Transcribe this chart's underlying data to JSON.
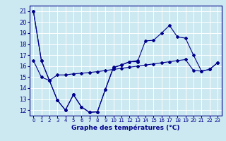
{
  "title": "Graphe des températures (°C)",
  "bg_color": "#cce8f0",
  "line_color": "#00008b",
  "grid_color": "#ffffff",
  "xlim": [
    -0.5,
    23.5
  ],
  "ylim": [
    11.5,
    21.5
  ],
  "xticks": [
    0,
    1,
    2,
    3,
    4,
    5,
    6,
    7,
    8,
    9,
    10,
    11,
    12,
    13,
    14,
    15,
    16,
    17,
    18,
    19,
    20,
    21,
    22,
    23
  ],
  "yticks": [
    12,
    13,
    14,
    15,
    16,
    17,
    18,
    19,
    20,
    21
  ],
  "line1_x": [
    0,
    1,
    2,
    3,
    4,
    5,
    6,
    7,
    8,
    9,
    10,
    11,
    12,
    13
  ],
  "line1_y": [
    21,
    16.5,
    14.7,
    12.9,
    12.0,
    13.4,
    12.3,
    11.8,
    11.85,
    13.9,
    15.9,
    16.1,
    16.4,
    16.5
  ],
  "line2_x": [
    0,
    1,
    2,
    3,
    4,
    5,
    6,
    7,
    8,
    9,
    10,
    11,
    12,
    13,
    14,
    15,
    16,
    17,
    18,
    19,
    20,
    21,
    22,
    23
  ],
  "line2_y": [
    16.5,
    15.0,
    14.7,
    15.2,
    15.2,
    15.3,
    15.35,
    15.42,
    15.5,
    15.6,
    15.7,
    15.8,
    15.9,
    16.0,
    16.1,
    16.2,
    16.3,
    16.4,
    16.5,
    16.6,
    15.6,
    15.55,
    15.7,
    16.3
  ],
  "line3_x": [
    0,
    1,
    2,
    3,
    4,
    5,
    6,
    7,
    8,
    9,
    10,
    11,
    12,
    13,
    14,
    15,
    16,
    17,
    18,
    19,
    20,
    21,
    22,
    23
  ],
  "line3_y": [
    21,
    16.5,
    14.7,
    12.9,
    12.0,
    13.4,
    12.3,
    11.8,
    11.85,
    13.9,
    15.85,
    16.1,
    16.4,
    16.4,
    18.3,
    18.35,
    19.0,
    19.7,
    18.65,
    18.55,
    17.0,
    15.55,
    15.7,
    16.3
  ]
}
